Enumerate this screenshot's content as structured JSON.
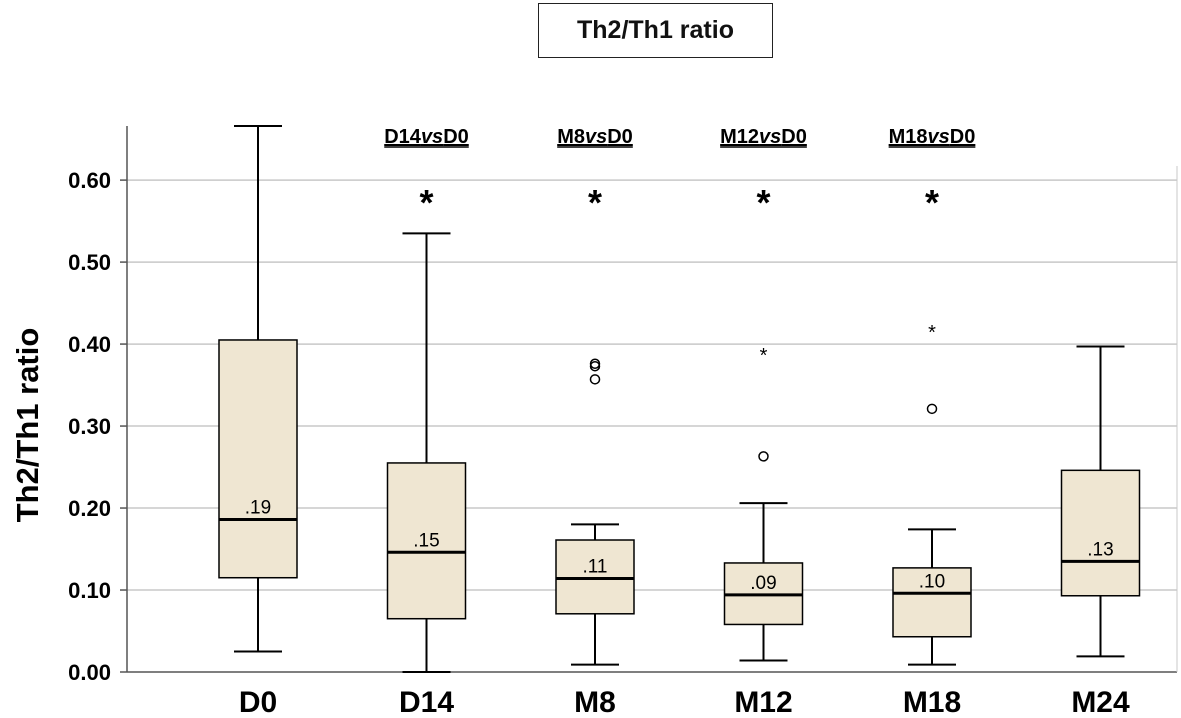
{
  "chart_data": {
    "type": "boxplot",
    "title": "Th2/Th1 ratio",
    "xlabel": "",
    "ylabel": "Th2/Th1 ratio",
    "ylim": [
      0,
      0.666
    ],
    "yticks": [
      "0.00",
      "0.10",
      "0.20",
      "0.30",
      "0.40",
      "0.50",
      "0.60"
    ],
    "grid": true,
    "colors": {
      "box_fill": "#efe6d2",
      "stroke": "#000000",
      "grid": "#c8c8c8"
    },
    "categories": [
      "D0",
      "D14",
      "M8",
      "M12",
      "M18",
      "M24"
    ],
    "boxes": [
      {
        "name": "D0",
        "min": 0.025,
        "q1": 0.115,
        "median": 0.186,
        "q3": 0.405,
        "max": 0.666,
        "median_label": ".19",
        "outliers": [],
        "extremes": []
      },
      {
        "name": "D14",
        "min": 0.0,
        "q1": 0.065,
        "median": 0.146,
        "q3": 0.255,
        "max": 0.535,
        "median_label": ".15",
        "outliers": [],
        "extremes": []
      },
      {
        "name": "M8",
        "min": 0.009,
        "q1": 0.071,
        "median": 0.114,
        "q3": 0.161,
        "max": 0.18,
        "median_label": ".11",
        "outliers": [
          0.376,
          0.373,
          0.357
        ],
        "extremes": []
      },
      {
        "name": "M12",
        "min": 0.014,
        "q1": 0.058,
        "median": 0.094,
        "q3": 0.133,
        "max": 0.206,
        "median_label": ".09",
        "outliers": [
          0.263
        ],
        "extremes": [
          0.389
        ]
      },
      {
        "name": "M18",
        "min": 0.009,
        "q1": 0.043,
        "median": 0.096,
        "q3": 0.127,
        "max": 0.174,
        "median_label": ".10",
        "outliers": [
          0.321
        ],
        "extremes": [
          0.417
        ]
      },
      {
        "name": "M24",
        "min": 0.019,
        "q1": 0.093,
        "median": 0.135,
        "q3": 0.246,
        "max": 0.397,
        "median_label": ".13",
        "outliers": [],
        "extremes": []
      }
    ],
    "annotations": [
      {
        "category": "D14",
        "label": "D14vsD0",
        "mark": "*"
      },
      {
        "category": "M8",
        "label": "M8vsD0",
        "mark": "*"
      },
      {
        "category": "M12",
        "label": "M12vsD0",
        "mark": "*"
      },
      {
        "category": "M18",
        "label": "M18vsD0",
        "mark": "*"
      }
    ]
  }
}
